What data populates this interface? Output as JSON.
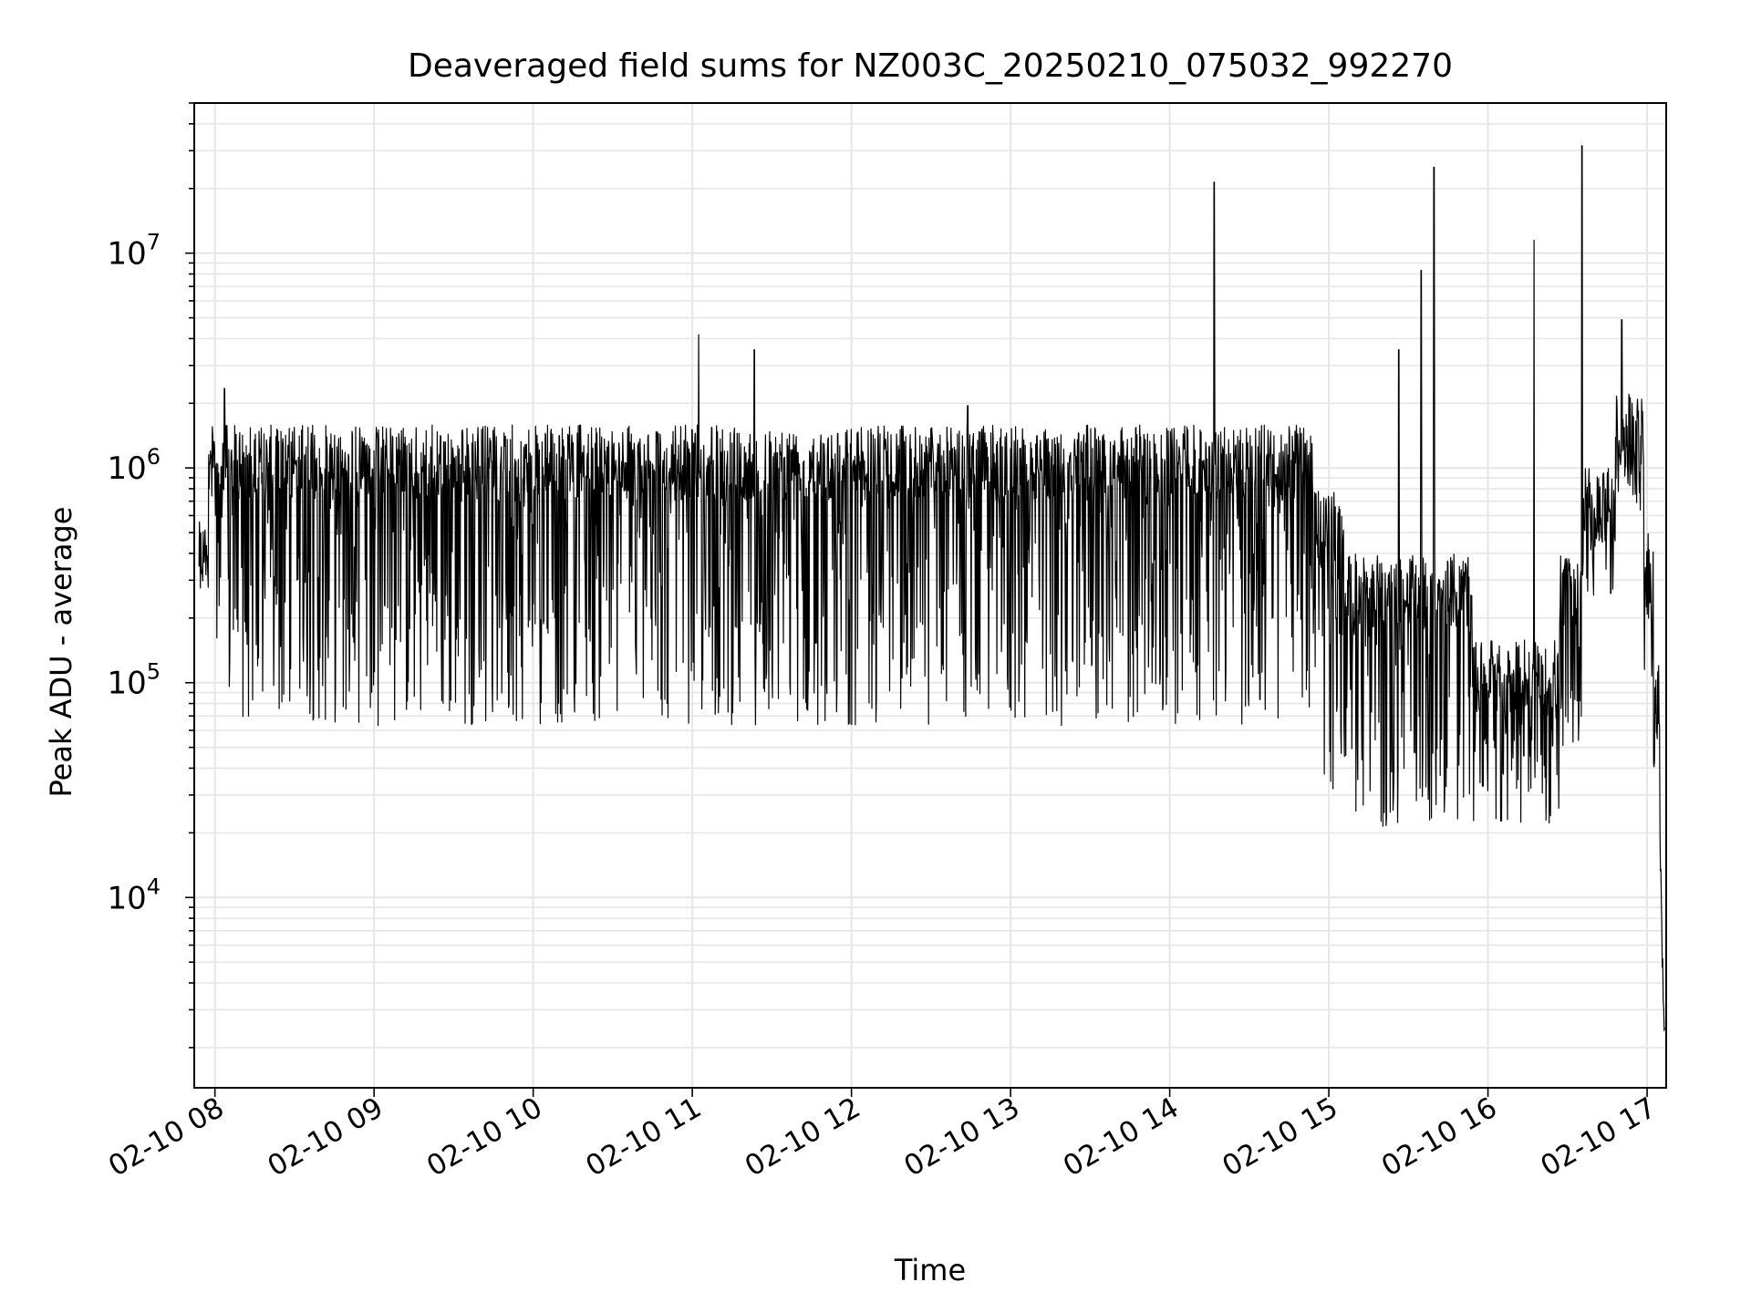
{
  "chart_data": {
    "type": "line",
    "title": "Deaveraged field sums for NZ003C_20250210_075032_992270",
    "xlabel": "Time",
    "ylabel": "Peak ADU - average",
    "x_tick_labels": [
      "02-10 08",
      "02-10 09",
      "02-10 10",
      "02-10 11",
      "02-10 12",
      "02-10 13",
      "02-10 14",
      "02-10 15",
      "02-10 16",
      "02-10 17"
    ],
    "x_tick_values_hours": [
      8,
      9,
      10,
      11,
      12,
      13,
      14,
      15,
      16,
      17
    ],
    "xlim_hours": [
      7.87,
      17.12
    ],
    "y_scale": "log",
    "y_tick_labels": [
      {
        "base": "10",
        "exp": "4"
      },
      {
        "base": "10",
        "exp": "5"
      },
      {
        "base": "10",
        "exp": "6"
      },
      {
        "base": "10",
        "exp": "7"
      }
    ],
    "y_tick_values": [
      10000,
      100000,
      1000000,
      10000000
    ],
    "ylim": [
      1300,
      50000000
    ],
    "grid": true,
    "line_color": "#000000",
    "grid_color": "#e6e6e6",
    "series": [
      {
        "values_description_time_hours_vs_log10_adu": [
          [
            7.9,
            5.5
          ],
          [
            7.93,
            5.6
          ],
          [
            7.95,
            6.2
          ],
          [
            7.98,
            6.1
          ],
          [
            8.0,
            5.8
          ],
          [
            8.05,
            6.35
          ],
          [
            8.1,
            5.5
          ],
          [
            8.2,
            5.9
          ],
          [
            8.3,
            5.4
          ],
          [
            8.5,
            5.9
          ],
          [
            8.7,
            5.5
          ],
          [
            9.0,
            5.6
          ],
          [
            9.2,
            5.2
          ],
          [
            9.4,
            5.6
          ],
          [
            9.7,
            5.8
          ],
          [
            10.0,
            5.7
          ],
          [
            10.3,
            5.8
          ],
          [
            10.7,
            5.6
          ],
          [
            11.04,
            6.6
          ],
          [
            11.2,
            5.7
          ],
          [
            11.39,
            6.55
          ],
          [
            11.6,
            5.8
          ],
          [
            12.0,
            5.9
          ],
          [
            12.3,
            6.0
          ],
          [
            12.7,
            6.3
          ],
          [
            13.0,
            5.9
          ],
          [
            13.5,
            5.8
          ],
          [
            14.0,
            5.7
          ],
          [
            14.28,
            7.33
          ],
          [
            14.4,
            5.9
          ],
          [
            14.8,
            5.8
          ],
          [
            14.95,
            5.4
          ],
          [
            15.1,
            5.0
          ],
          [
            15.3,
            4.9
          ],
          [
            15.44,
            6.55
          ],
          [
            15.58,
            6.9
          ],
          [
            15.66,
            7.4
          ],
          [
            15.8,
            5.0
          ],
          [
            16.0,
            4.6
          ],
          [
            16.2,
            4.8
          ],
          [
            16.29,
            7.05
          ],
          [
            16.4,
            4.8
          ],
          [
            16.59,
            7.5
          ],
          [
            16.7,
            5.5
          ],
          [
            16.85,
            6.3
          ],
          [
            16.95,
            6.0
          ],
          [
            17.0,
            5.6
          ],
          [
            17.05,
            5.3
          ],
          [
            17.09,
            4.2
          ],
          [
            17.11,
            3.3
          ]
        ]
      }
    ]
  }
}
